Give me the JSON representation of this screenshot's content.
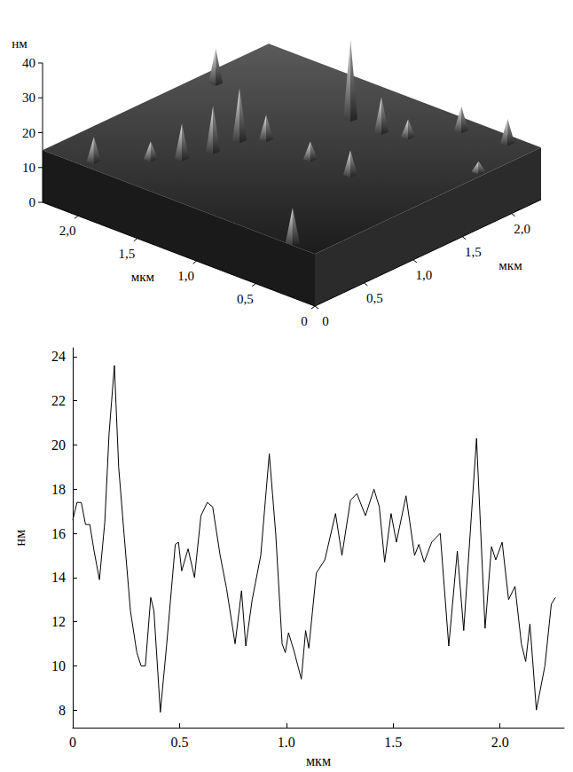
{
  "chart_data": [
    {
      "type": "surface3d",
      "xlabel": "мкм",
      "ylabel": "мкм",
      "zlabel": "нм",
      "xlim": [
        0,
        2.3
      ],
      "ylim": [
        0,
        2.3
      ],
      "zlim": [
        0,
        40
      ],
      "xticks": [
        0,
        {
          "value": 0.5,
          "label": "0,5"
        },
        {
          "value": 1,
          "label": "1,0"
        },
        {
          "value": 1.5,
          "label": "1,5"
        },
        {
          "value": 2,
          "label": "2,0"
        }
      ],
      "yticks": [
        0,
        {
          "value": 0.5,
          "label": "0,5"
        },
        {
          "value": 1,
          "label": "1,0"
        },
        {
          "value": 1.5,
          "label": "1,5"
        },
        {
          "value": 2,
          "label": "2,0"
        }
      ],
      "zticks": [
        0,
        10,
        20,
        30,
        40
      ],
      "surface_level": 15,
      "peaks": [
        {
          "x": 2.155,
          "y": 1.586,
          "z": 25
        },
        {
          "x": 1.477,
          "y": 1.012,
          "z": 30
        },
        {
          "x": 1.493,
          "y": 0.762,
          "z": 28
        },
        {
          "x": 1.566,
          "y": 0.533,
          "z": 25
        },
        {
          "x": 1.363,
          "y": 1.146,
          "z": 22
        },
        {
          "x": 1.17,
          "y": 1.77,
          "z": 38
        },
        {
          "x": 0.898,
          "y": 1.758,
          "z": 25
        },
        {
          "x": 0.725,
          "y": 1.821,
          "z": 20
        },
        {
          "x": 0.54,
          "y": 2.139,
          "z": 22
        },
        {
          "x": 0.2,
          "y": 2.2,
          "z": 22
        },
        {
          "x": 1.95,
          "y": 0.1,
          "z": 22
        },
        {
          "x": 1.707,
          "y": 0.386,
          "z": 20
        },
        {
          "x": 0.962,
          "y": 1.112,
          "z": 20
        },
        {
          "x": 0.619,
          "y": 1.106,
          "z": 22
        },
        {
          "x": 0.214,
          "y": 0.031,
          "z": 25
        },
        {
          "x": 0.05,
          "y": 1.725,
          "z": 18
        }
      ],
      "color": "#e6e6e6"
    },
    {
      "type": "line",
      "xlabel": "мкм",
      "ylabel": "нм",
      "x": [
        0,
        0.02,
        0.04,
        0.06,
        0.08,
        0.1,
        0.125,
        0.15,
        0.17,
        0.195,
        0.215,
        0.24,
        0.27,
        0.3,
        0.32,
        0.34,
        0.365,
        0.38,
        0.41,
        0.44,
        0.48,
        0.495,
        0.51,
        0.54,
        0.57,
        0.6,
        0.63,
        0.655,
        0.69,
        0.72,
        0.76,
        0.79,
        0.81,
        0.84,
        0.88,
        0.92,
        0.95,
        0.98,
        0.995,
        1.01,
        1.035,
        1.07,
        1.09,
        1.105,
        1.14,
        1.18,
        1.23,
        1.26,
        1.3,
        1.33,
        1.37,
        1.41,
        1.435,
        1.46,
        1.49,
        1.515,
        1.56,
        1.6,
        1.62,
        1.645,
        1.68,
        1.72,
        1.76,
        1.8,
        1.83,
        1.89,
        1.93,
        1.96,
        1.98,
        2.01,
        2.04,
        2.07,
        2.1,
        2.12,
        2.14,
        2.17,
        2.21,
        2.24,
        2.26
      ],
      "values": [
        16.6,
        17.4,
        17.4,
        16.4,
        16.4,
        15.2,
        13.9,
        16.5,
        20.5,
        23.6,
        19.0,
        16.0,
        12.5,
        10.6,
        10.0,
        10.0,
        13.1,
        12.5,
        7.9,
        11.0,
        15.5,
        15.6,
        14.3,
        15.3,
        14.0,
        16.8,
        17.4,
        17.2,
        15.0,
        13.5,
        11.0,
        13.4,
        10.9,
        13.0,
        15.0,
        19.6,
        16.0,
        11.0,
        10.6,
        11.5,
        10.7,
        9.4,
        11.6,
        10.8,
        14.2,
        14.8,
        16.9,
        15.0,
        17.5,
        17.8,
        16.8,
        18.0,
        17.2,
        14.7,
        16.9,
        15.6,
        17.7,
        15.0,
        15.5,
        14.7,
        15.6,
        16.0,
        10.9,
        15.2,
        11.6,
        20.3,
        11.7,
        15.4,
        14.8,
        15.6,
        13.0,
        13.6,
        11.0,
        10.2,
        11.9,
        8.0,
        10.0,
        12.8,
        13.1
      ],
      "xlim": [
        0,
        2.3
      ],
      "ylim": [
        7.2,
        24.4
      ],
      "xticks": [
        0,
        0.5,
        {
          "value": 1,
          "label": "1.0"
        },
        1.5,
        {
          "value": 2,
          "label": "2.0"
        }
      ],
      "yticks": [
        8,
        10,
        12,
        14,
        16,
        18,
        20,
        22,
        24
      ],
      "color": "#000000",
      "grid": false
    }
  ]
}
